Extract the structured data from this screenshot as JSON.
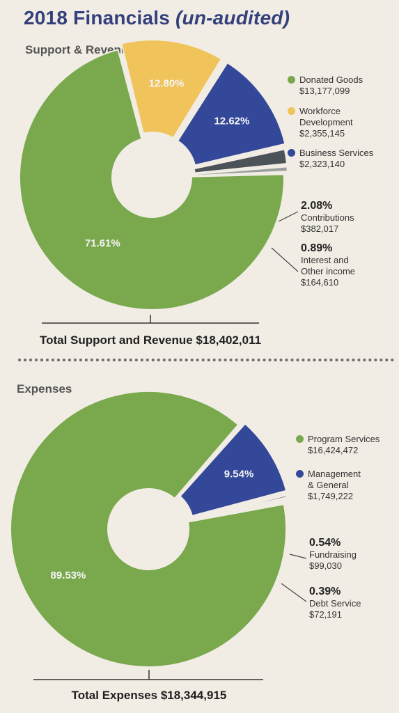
{
  "title": {
    "main": "2018 Financials",
    "qualifier": "(un-audited)"
  },
  "colors": {
    "green": "#7aa84d",
    "yellow": "#f0c35b",
    "blue": "#34489a",
    "dark_gray": "#4c5358",
    "light_gray": "#9b9e9f",
    "title": "#34407c"
  },
  "chart_data": [
    {
      "type": "pie",
      "title": "Support & Revenue",
      "total_label": "Total Support and Revenue $18,402,011",
      "slices": [
        {
          "name": "Donated Goods",
          "amount": "$13,177,099",
          "percent": 71.61,
          "label": "71.61%",
          "color": "#7aa84d"
        },
        {
          "name": "Workforce Development",
          "amount": "$2,355,145",
          "percent": 12.8,
          "label": "12.80%",
          "color": "#f0c35b"
        },
        {
          "name": "Business Services",
          "amount": "$2,323,140",
          "percent": 12.62,
          "label": "12.62%",
          "color": "#34489a"
        },
        {
          "name": "Contributions",
          "amount": "$382,017",
          "percent": 2.08,
          "label": "2.08%",
          "color": "#4c5358"
        },
        {
          "name": "Interest and Other income",
          "amount": "$164,610",
          "percent": 0.89,
          "label": "0.89%",
          "color": "#9b9e9f"
        }
      ]
    },
    {
      "type": "pie",
      "title": "Expenses",
      "total_label": "Total Expenses $18,344,915",
      "slices": [
        {
          "name": "Program Services",
          "amount": "$16,424,472",
          "percent": 89.53,
          "label": "89.53%",
          "color": "#7aa84d"
        },
        {
          "name": "Management & General",
          "amount": "$1,749,222",
          "percent": 9.54,
          "label": "9.54%",
          "color": "#34489a"
        },
        {
          "name": "Fundraising",
          "amount": "$99,030",
          "percent": 0.54,
          "label": "0.54%",
          "color": "#4c5358"
        },
        {
          "name": "Debt Service",
          "amount": "$72,191",
          "percent": 0.39,
          "label": "0.39%",
          "color": "#9b9e9f"
        }
      ]
    }
  ],
  "legend_revenue": {
    "donated": {
      "line1": "Donated Goods",
      "amount": "$13,177,099"
    },
    "workforce": {
      "line1": "Workforce",
      "line2": "Development",
      "amount": "$2,355,145"
    },
    "business": {
      "line1": "Business Services",
      "amount": "$2,323,140"
    },
    "contributions": {
      "pct": "2.08%",
      "line1": "Contributions",
      "amount": "$382,017"
    },
    "interest": {
      "pct": "0.89%",
      "line1": "Interest and",
      "line2": "Other income",
      "amount": "$164,610"
    }
  },
  "legend_expenses": {
    "program": {
      "line1": "Program Services",
      "amount": "$16,424,472"
    },
    "management": {
      "line1": "Management",
      "line2": "& General",
      "amount": "$1,749,222"
    },
    "fundraising": {
      "pct": "0.54%",
      "line1": "Fundraising",
      "amount": "$99,030"
    },
    "debt": {
      "pct": "0.39%",
      "line1": "Debt Service",
      "amount": "$72,191"
    }
  }
}
